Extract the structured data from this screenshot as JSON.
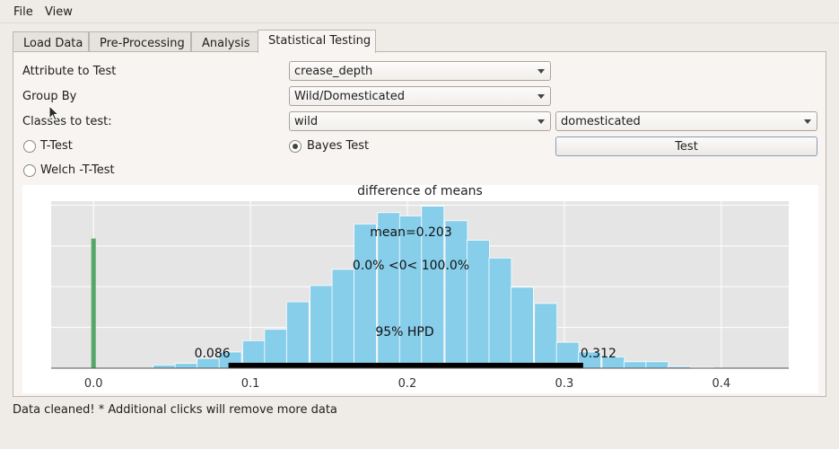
{
  "menu": {
    "file": "File",
    "view": "View"
  },
  "tabs": [
    {
      "label": "Load Data"
    },
    {
      "label": "Pre-Processing"
    },
    {
      "label": "Analysis"
    },
    {
      "label": "Statistical Testing"
    }
  ],
  "form": {
    "attribute_label": "Attribute to Test",
    "attribute_value": "crease_depth",
    "group_label": "Group By",
    "group_value": "Wild/Domesticated",
    "classes_label": "Classes to test:",
    "class_a_value": "wild",
    "class_b_value": "domesticated",
    "ttest_label": "T-Test",
    "ttest_checked": false,
    "welch_label": "Welch -T-Test",
    "welch_checked": false,
    "bayes_label": "Bayes Test",
    "bayes_checked": true,
    "test_button": "Test"
  },
  "chart_data": {
    "type": "bar",
    "title": "difference of means",
    "xlim": [
      -0.027,
      0.443
    ],
    "ylim": [
      0,
      1
    ],
    "xticks": [
      0.0,
      0.1,
      0.2,
      0.3,
      0.4
    ],
    "xtick_labels": [
      "0.0",
      "0.1",
      "0.2",
      "0.3",
      "0.4"
    ],
    "grid": true,
    "bin_width": 0.0143,
    "bin_starts": [
      0.038,
      0.052,
      0.066,
      0.08,
      0.095,
      0.109,
      0.123,
      0.138,
      0.152,
      0.166,
      0.181,
      0.195,
      0.209,
      0.224,
      0.238,
      0.252,
      0.266,
      0.281,
      0.295,
      0.309,
      0.324,
      0.338,
      0.352,
      0.366,
      0.381
    ],
    "values": [
      0.02,
      0.03,
      0.06,
      0.1,
      0.17,
      0.24,
      0.41,
      0.51,
      0.61,
      0.89,
      0.96,
      0.94,
      1.0,
      0.91,
      0.79,
      0.68,
      0.5,
      0.4,
      0.16,
      0.1,
      0.07,
      0.04,
      0.04,
      0.01,
      0.005
    ],
    "reference_line": {
      "x": 0.0,
      "height": 0.8
    },
    "hpd": {
      "low": 0.086,
      "high": 0.312,
      "low_label": "0.086",
      "high_label": "0.312",
      "label": "95% HPD"
    },
    "annotations": {
      "mean": "mean=0.203",
      "prob": "0.0% <0< 100.0%"
    },
    "colors": {
      "bars": "#87ceeb",
      "reference": "#55a868",
      "hpd": "#000000",
      "background": "#e5e5e5",
      "grid": "#ffffff"
    }
  },
  "status": "Data cleaned! * Additional clicks will remove more data"
}
